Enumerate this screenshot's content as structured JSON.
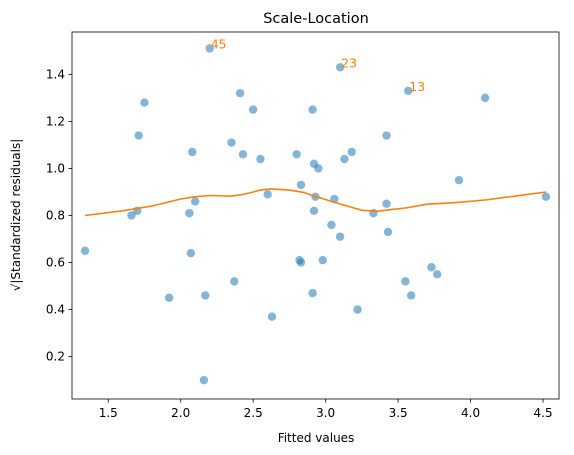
{
  "chart_data": {
    "type": "scatter",
    "title": "Scale-Location",
    "xlabel": "Fitted values",
    "ylabel": "√|Standardized residuals|",
    "xlim": [
      1.25,
      4.61
    ],
    "ylim": [
      0.02,
      1.58
    ],
    "xticks": [
      "1.5",
      "2.0",
      "2.5",
      "3.0",
      "3.5",
      "4.0",
      "4.5"
    ],
    "yticks": [
      "0.2",
      "0.4",
      "0.6",
      "0.8",
      "1.0",
      "1.2",
      "1.4"
    ],
    "grid": false,
    "legend": "none",
    "colors": {
      "points": "#1f77b4",
      "lowess": "#ff7f0e"
    },
    "series": [
      {
        "kind": "points",
        "x": [
          1.34,
          1.66,
          1.7,
          1.71,
          1.75,
          1.92,
          2.06,
          2.07,
          2.08,
          2.1,
          2.16,
          2.17,
          2.2,
          2.35,
          2.37,
          2.41,
          2.43,
          2.5,
          2.55,
          2.6,
          2.63,
          2.8,
          2.82,
          2.83,
          2.83,
          2.91,
          2.91,
          2.92,
          2.92,
          2.93,
          2.95,
          2.98,
          3.04,
          3.06,
          3.1,
          3.1,
          3.13,
          3.18,
          3.22,
          3.33,
          3.42,
          3.42,
          3.43,
          3.55,
          3.57,
          3.59,
          3.73,
          3.77,
          3.92,
          4.1,
          4.52
        ],
        "y": [
          0.65,
          0.8,
          0.82,
          1.14,
          1.28,
          0.45,
          0.81,
          0.64,
          1.07,
          0.86,
          0.1,
          0.46,
          1.51,
          1.11,
          0.52,
          1.32,
          1.06,
          1.25,
          1.04,
          0.89,
          0.37,
          1.06,
          0.61,
          0.93,
          0.6,
          1.25,
          0.47,
          1.02,
          0.82,
          0.88,
          1.0,
          0.61,
          0.76,
          0.87,
          0.71,
          1.43,
          1.04,
          1.07,
          0.4,
          0.81,
          1.14,
          0.85,
          0.73,
          0.52,
          1.33,
          0.46,
          0.58,
          0.55,
          0.95,
          1.3,
          0.88
        ]
      },
      {
        "kind": "lowess",
        "x": [
          1.34,
          1.6,
          1.8,
          2.0,
          2.1,
          2.2,
          2.35,
          2.45,
          2.55,
          2.62,
          2.75,
          2.85,
          2.92,
          2.98,
          3.05,
          3.15,
          3.25,
          3.35,
          3.45,
          3.55,
          3.7,
          3.9,
          4.1,
          4.3,
          4.52
        ],
        "y": [
          0.8,
          0.82,
          0.84,
          0.87,
          0.88,
          0.885,
          0.882,
          0.892,
          0.908,
          0.913,
          0.908,
          0.898,
          0.882,
          0.872,
          0.858,
          0.84,
          0.822,
          0.818,
          0.825,
          0.832,
          0.848,
          0.855,
          0.866,
          0.882,
          0.9
        ]
      }
    ],
    "annotations": [
      {
        "text": "45",
        "x": 2.2,
        "y": 1.51
      },
      {
        "text": "23",
        "x": 3.1,
        "y": 1.43
      },
      {
        "text": "13",
        "x": 3.57,
        "y": 1.33
      }
    ]
  }
}
